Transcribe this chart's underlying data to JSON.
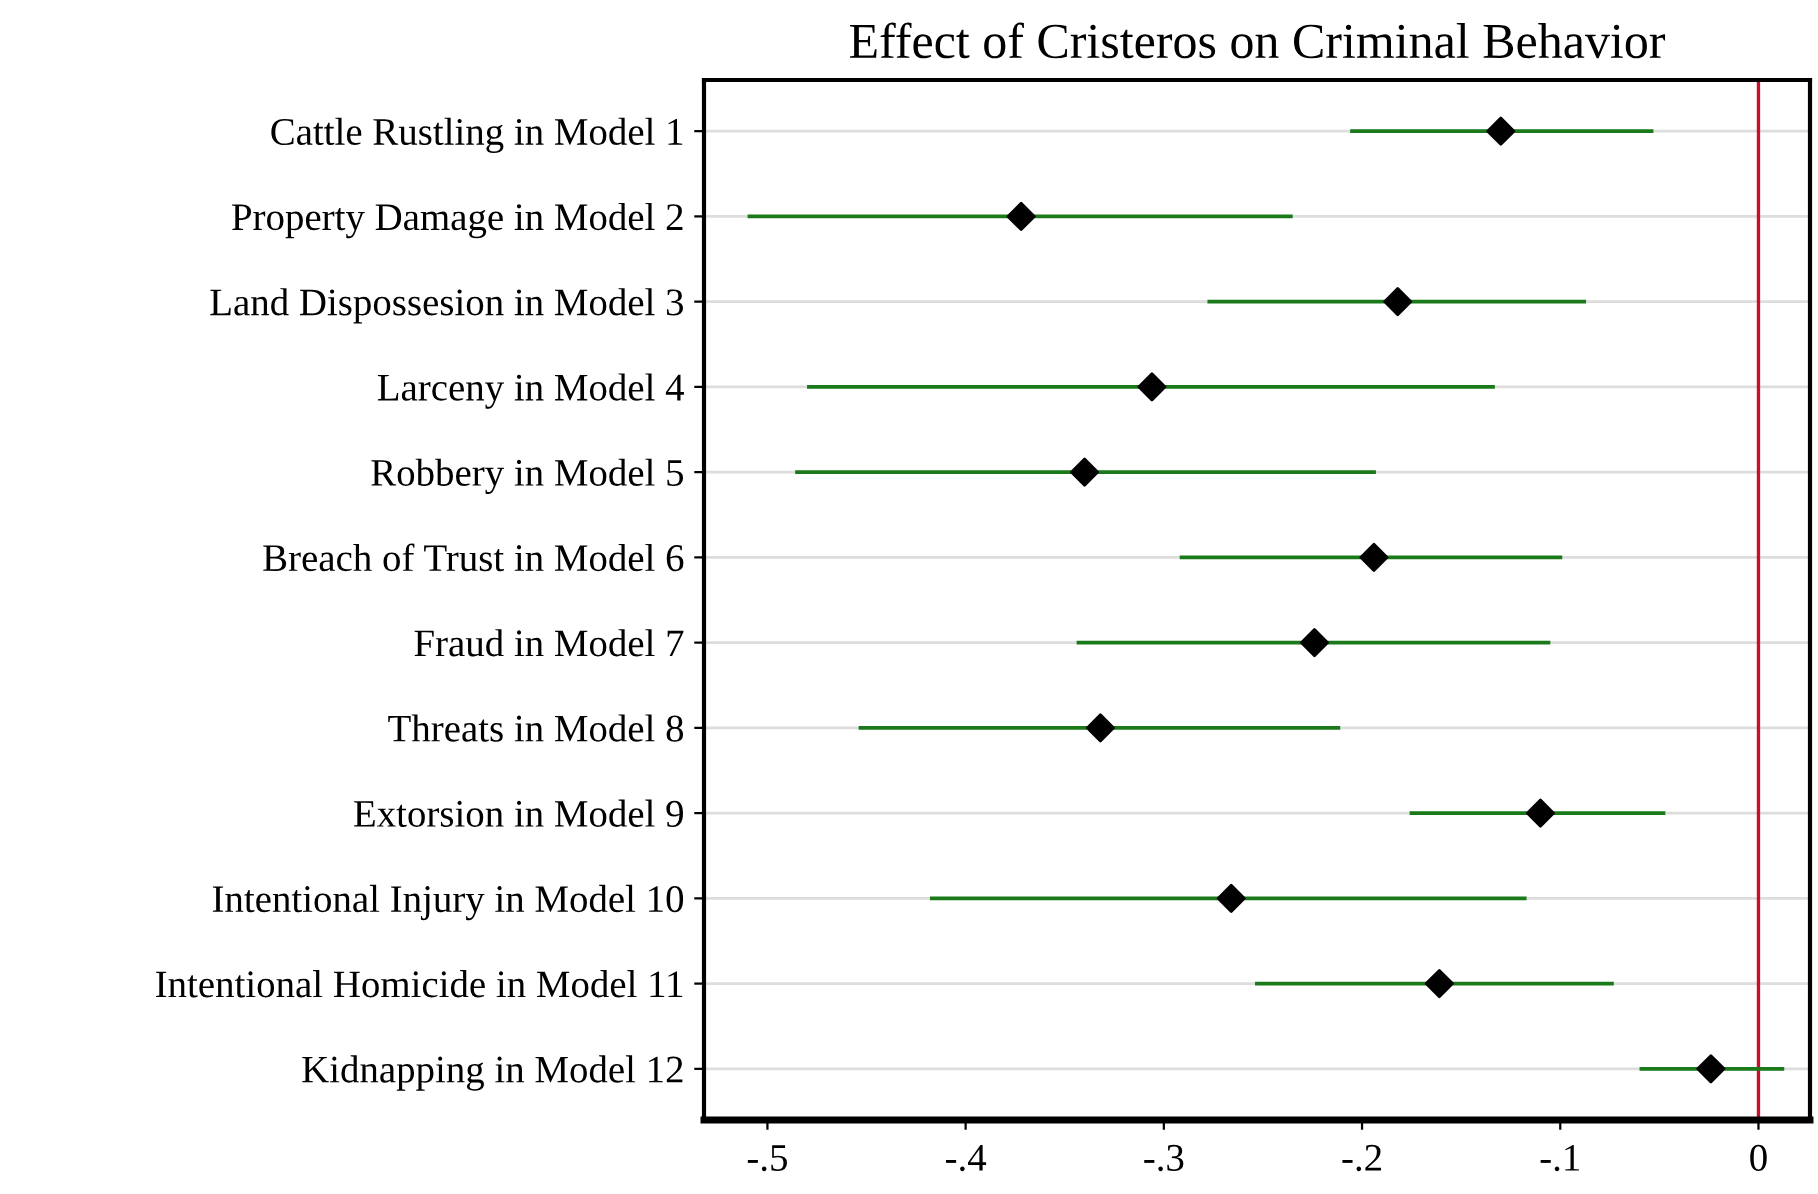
{
  "chart_data": {
    "type": "scatter",
    "orientation": "horizontal",
    "title": "Effect of Cristeros on Criminal Behavior",
    "categories": [
      "Cattle Rustling in Model 1",
      "Property Damage in Model 2",
      "Land Dispossesion in Model 3",
      "Larceny in Model 4",
      "Robbery in Model 5",
      "Breach of Trust in Model 6",
      "Fraud in Model 7",
      "Threats in Model 8",
      "Extorsion in Model 9",
      "Intentional Injury in Model 10",
      "Intentional Homicide in Model 11",
      "Kidnapping in Model 12"
    ],
    "series": [
      {
        "color": "#000000",
        "values": [
          -0.13,
          -0.372,
          -0.182,
          -0.306,
          -0.34,
          -0.194,
          -0.224,
          -0.332,
          -0.11,
          -0.266,
          -0.161,
          -0.024
        ],
        "errors": [
          [
            -0.206,
            -0.053
          ],
          [
            -0.51,
            -0.235
          ],
          [
            -0.278,
            -0.087
          ],
          [
            -0.48,
            -0.133
          ],
          [
            -0.486,
            -0.193
          ],
          [
            -0.292,
            -0.099
          ],
          [
            -0.344,
            -0.105
          ],
          [
            -0.454,
            -0.211
          ],
          [
            -0.176,
            -0.047
          ],
          [
            -0.418,
            -0.117
          ],
          [
            -0.254,
            -0.073
          ],
          [
            -0.06,
            0.013
          ]
        ]
      }
    ],
    "xlim": [
      -0.532,
      0.026
    ],
    "xticks": [
      {
        "value": -0.5,
        "label": "-.5"
      },
      {
        "value": -0.4,
        "label": "-.4"
      },
      {
        "value": -0.3,
        "label": "-.3"
      },
      {
        "value": -0.2,
        "label": "-.2"
      },
      {
        "value": -0.1,
        "label": "-.1"
      },
      0
    ],
    "ref_lines": [
      {
        "axis": "x",
        "value": 0,
        "color": "#c8102e"
      }
    ],
    "grid": "y",
    "marker": "diamond",
    "legend": false
  }
}
